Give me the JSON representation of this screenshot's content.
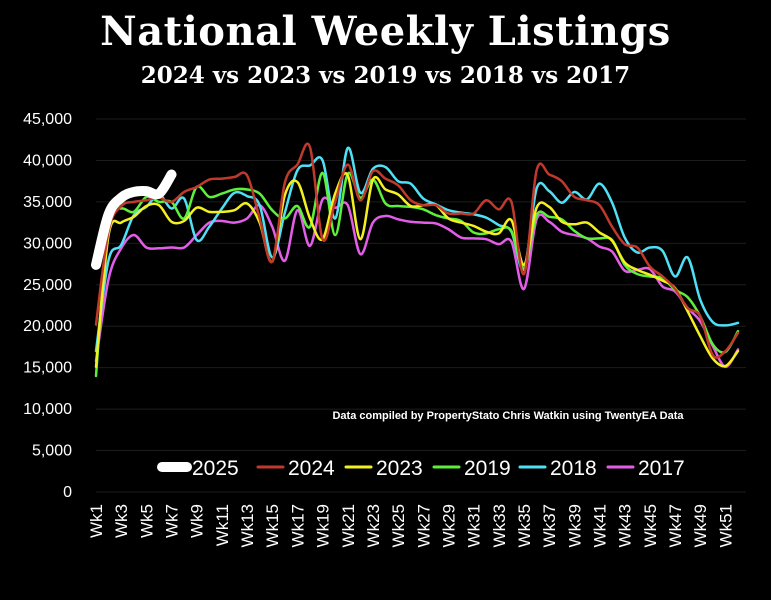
{
  "title": "National Weekly Listings",
  "subtitle": "2024 vs 2023 vs 2019 vs 2018 vs 2017",
  "credit": "Data compiled by PropertyStato Chris Watkin using TwentyEA Data",
  "chart_data": {
    "type": "line",
    "title": "National Weekly Listings",
    "subtitle": "2024 vs 2023 vs 2019 vs 2018 vs 2017",
    "ylim": [
      0,
      45000
    ],
    "yticks": [
      0,
      5000,
      10000,
      15000,
      20000,
      25000,
      30000,
      35000,
      40000,
      45000
    ],
    "ytick_labels": [
      "0",
      "5,000",
      "10,000",
      "15,000",
      "20,000",
      "25,000",
      "30,000",
      "35,000",
      "40,000",
      "45,000"
    ],
    "xtick_labels": [
      "Wk1",
      "Wk3",
      "Wk5",
      "Wk7",
      "Wk9",
      "Wk11",
      "Wk13",
      "Wk15",
      "Wk17",
      "Wk19",
      "Wk21",
      "Wk23",
      "Wk25",
      "Wk27",
      "Wk29",
      "Wk31",
      "Wk33",
      "Wk35",
      "Wk37",
      "Wk39",
      "Wk41",
      "Wk43",
      "Wk45",
      "Wk47",
      "Wk49",
      "Wk51"
    ],
    "grid": true,
    "legend_position": "bottom-center",
    "series": [
      {
        "name": "2024",
        "color": "#c0392b",
        "width": 2.5,
        "values": [
          20200,
          31500,
          34500,
          35000,
          35200,
          35500,
          35000,
          36200,
          36800,
          37700,
          37800,
          38000,
          38200,
          33000,
          27800,
          37300,
          39500,
          41600,
          30500,
          35000,
          39500,
          35200,
          38700,
          37800,
          37000,
          35200,
          34600,
          34600,
          33600,
          33600,
          33600,
          35200,
          34100,
          35000,
          26300,
          38800,
          38300,
          37500,
          35600,
          35200,
          34600,
          32000,
          29900,
          29500,
          27200,
          26000,
          24500,
          22200,
          21200,
          16500,
          17000,
          19200
        ]
      },
      {
        "name": "2023",
        "color": "#f4f020",
        "width": 2.5,
        "values": [
          15100,
          31000,
          32500,
          33200,
          34500,
          34600,
          32600,
          32700,
          34300,
          33800,
          33800,
          34000,
          34800,
          32500,
          27800,
          35800,
          37400,
          33000,
          30500,
          36000,
          38200,
          30500,
          37700,
          36500,
          35900,
          34500,
          34600,
          34600,
          33000,
          32500,
          32100,
          31400,
          31200,
          32800,
          27400,
          34300,
          34400,
          32600,
          32300,
          32500,
          31300,
          30300,
          27700,
          26800,
          26200,
          25500,
          24600,
          21800,
          18800,
          16100,
          15200,
          17000
        ]
      },
      {
        "name": "2019",
        "color": "#5cf03a",
        "width": 2.5,
        "values": [
          14000,
          33000,
          34200,
          33800,
          35600,
          35000,
          35000,
          33000,
          36800,
          35600,
          36000,
          36500,
          36500,
          36000,
          34000,
          33000,
          34500,
          32000,
          38500,
          31000,
          38400,
          35500,
          37700,
          34800,
          34500,
          34400,
          34100,
          33400,
          33000,
          32700,
          31300,
          31200,
          31700,
          31500,
          27000,
          33400,
          33200,
          32900,
          31500,
          30600,
          30600,
          30400,
          27400,
          26300,
          26000,
          25800,
          24400,
          23500,
          21200,
          17800,
          16900,
          19400
        ]
      },
      {
        "name": "2018",
        "color": "#4fe0f5",
        "width": 2.5,
        "values": [
          17000,
          28000,
          29800,
          33400,
          34400,
          35900,
          34200,
          35400,
          30400,
          32000,
          34200,
          36100,
          35700,
          34600,
          28300,
          33700,
          38800,
          39400,
          40000,
          33000,
          41500,
          36100,
          39000,
          39200,
          37500,
          37200,
          35400,
          34700,
          34000,
          33700,
          33500,
          33100,
          32200,
          31400,
          26900,
          36600,
          36300,
          34900,
          36200,
          35300,
          37200,
          34900,
          30700,
          28900,
          29500,
          29100,
          26000,
          28300,
          23200,
          20500,
          20100,
          20400
        ]
      },
      {
        "name": "2017",
        "color": "#e35ee8",
        "width": 2.5,
        "values": [
          15800,
          25700,
          29400,
          31000,
          29500,
          29400,
          29500,
          29500,
          31000,
          32500,
          32700,
          32500,
          33000,
          34600,
          32000,
          27900,
          34000,
          29700,
          35300,
          34300,
          34600,
          28700,
          32500,
          33300,
          32900,
          32600,
          32500,
          32400,
          31700,
          30700,
          30600,
          30500,
          29900,
          30200,
          24500,
          32900,
          32600,
          31400,
          31000,
          30600,
          29600,
          29000,
          26700,
          26800,
          26900,
          24800,
          24200,
          22200,
          20600,
          17600,
          15100,
          17200
        ]
      },
      {
        "name": "2025",
        "color": "#ffffff",
        "width": 10,
        "values": [
          27400,
          33500,
          35500,
          36200,
          36300,
          36000,
          38300
        ]
      }
    ]
  }
}
